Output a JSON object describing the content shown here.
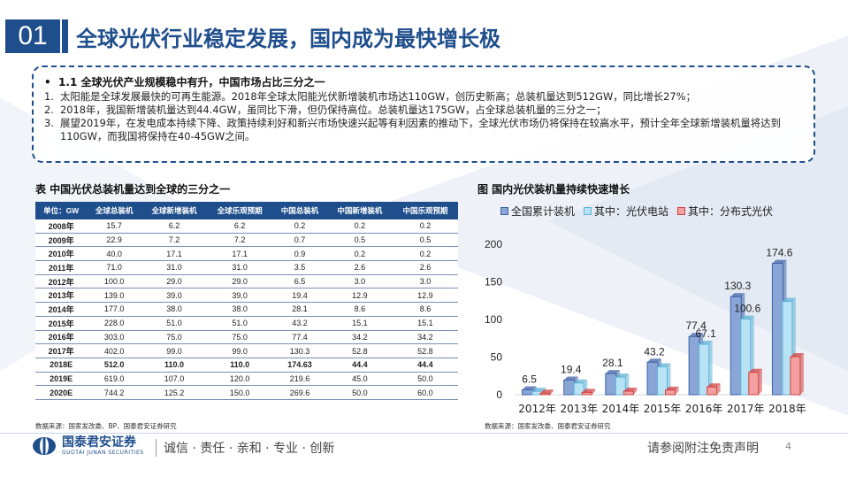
{
  "header": {
    "section_number": "01",
    "title": "全球光伏行业稳定发展，国内成为最快增长极"
  },
  "summary": {
    "heading_bullet": "•",
    "heading": "1.1 全球光伏产业规模稳中有升，中国市场占比三分之一",
    "points": [
      {
        "num": "1.",
        "text": "太阳能是全球发展最快的可再生能源。2018年全球太阳能光伏新增装机市场达110GW，创历史新高；总装机量达到512GW，同比增长27%；"
      },
      {
        "num": "2.",
        "text": "2018年，我国新增装机量达到44.4GW，虽同比下滑，但仍保持高位。总装机量达175GW，占全球总装机量的三分之一；"
      },
      {
        "num": "3.",
        "text": "展望2019年，在发电成本持续下降、政策持续利好和新兴市场快速兴起等有利因素的推动下，全球光伏市场仍将保持在较高水平，预计全年全球新增装机量将达到110GW，而我国将保持在40-45GW之间。"
      }
    ]
  },
  "table": {
    "caption": "表 中国光伏总装机量达到全球的三分之一",
    "headers": [
      "单位：GW",
      "全球总装机",
      "全球新增装机",
      "全球乐观预期",
      "中国总装机",
      "中国新增装机",
      "中国乐观预期"
    ],
    "rows": [
      [
        "2008年",
        "15.7",
        "6.2",
        "6.2",
        "0.2",
        "0.2",
        "0.2"
      ],
      [
        "2009年",
        "22.9",
        "7.2",
        "7.2",
        "0.7",
        "0.5",
        "0.5"
      ],
      [
        "2010年",
        "40.0",
        "17.1",
        "17.1",
        "0.9",
        "0.2",
        "0.2"
      ],
      [
        "2011年",
        "71.0",
        "31.0",
        "31.0",
        "3.5",
        "2.6",
        "2.6"
      ],
      [
        "2012年",
        "100.0",
        "29.0",
        "29.0",
        "6.5",
        "3.0",
        "3.0"
      ],
      [
        "2013年",
        "139.0",
        "39.0",
        "39.0",
        "19.4",
        "12.9",
        "12.9"
      ],
      [
        "2014年",
        "177.0",
        "38.0",
        "38.0",
        "28.1",
        "8.6",
        "8.6"
      ],
      [
        "2015年",
        "228.0",
        "51.0",
        "51.0",
        "43.2",
        "15.1",
        "15.1"
      ],
      [
        "2016年",
        "303.0",
        "75.0",
        "75.0",
        "77.4",
        "34.2",
        "34.2"
      ],
      [
        "2017年",
        "402.0",
        "99.0",
        "99.0",
        "130.3",
        "52.8",
        "52.8"
      ],
      [
        "2018E",
        "512.0",
        "110.0",
        "110.0",
        "174.63",
        "44.4",
        "44.4"
      ],
      [
        "2019E",
        "619.0",
        "107.0",
        "120.0",
        "219.6",
        "45.0",
        "50.0"
      ],
      [
        "2020E",
        "744.2",
        "125.2",
        "150.0",
        "269.6",
        "50.0",
        "60.0"
      ]
    ],
    "highlight_row": "2018E",
    "source": "数据来源：国家发改委、BP、国泰君安证券研究"
  },
  "chart_data": {
    "type": "bar",
    "title": "图 国内光伏装机量持续快速增长",
    "categories": [
      "2012年",
      "2013年",
      "2014年",
      "2015年",
      "2016年",
      "2017年",
      "2018年"
    ],
    "series": [
      {
        "name": "全国累计装机",
        "values": [
          6.5,
          19.4,
          28.1,
          43.2,
          77.4,
          130.3,
          174.6
        ],
        "color": "#8aa6d6",
        "labeled": true
      },
      {
        "name": "其中：光伏电站",
        "values": [
          4.5,
          15.5,
          23.4,
          37.1,
          67.1,
          100.6,
          124.0
        ],
        "color": "#b8e3f5",
        "labeled_indices": [
          4,
          5
        ]
      },
      {
        "name": "其中：分布式光伏",
        "values": [
          2.0,
          3.1,
          4.7,
          6.1,
          10.3,
          29.7,
          50.6
        ],
        "color": "#f2a0a0",
        "labeled": false
      }
    ],
    "ylim": [
      0,
      200
    ],
    "yticks": [
      0,
      50,
      100,
      150,
      200
    ],
    "grid": false,
    "legend_position": "top",
    "source": "数据来源：国家发改委、国泰君安证券研究"
  },
  "footer": {
    "brand_name": "国泰君安证券",
    "brand_en": "GUOTAI JUNAN SECURITIES",
    "motto": "诚信 · 责任 · 亲和 · 专业 · 创新",
    "disclaimer": "请参阅附注免责声明",
    "page": "4"
  },
  "colors": {
    "brand": "#1f4e8c",
    "table_border": "#7a8fb5"
  }
}
